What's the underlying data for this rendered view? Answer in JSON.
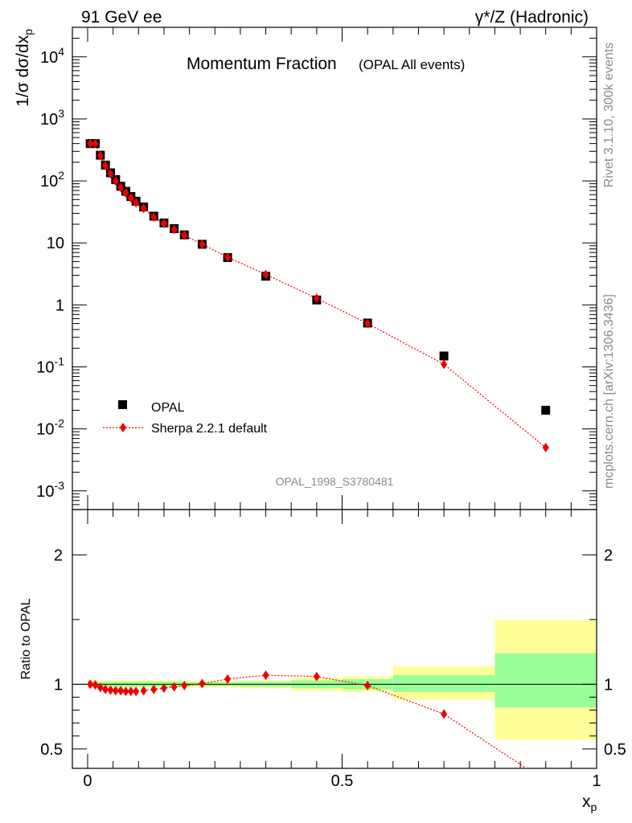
{
  "header": {
    "left": "91 GeV ee",
    "right": "γ*/Z (Hadronic)"
  },
  "side_labels": {
    "top": "Rivet 3.1.10,  300k events",
    "bottom": "mcplots.cern.ch [arXiv:1306.3436]"
  },
  "colors": {
    "data": "#000000",
    "mc": "#ee0000",
    "band_inner": "#99ff99",
    "band_outer": "#ffff99"
  },
  "chart_data": [
    {
      "type": "scatter",
      "title": "Momentum Fraction",
      "subtitle": "(OPAL All events)",
      "ylabel": "1/σ dσ/dx_p",
      "xlim": [
        -0.03,
        1.0
      ],
      "ylim": [
        0.0005,
        30000
      ],
      "yscale": "log",
      "yticks": [
        "10^-3",
        "10^-2",
        "10^-1",
        "1",
        "10",
        "10^2",
        "10^3",
        "10^4"
      ],
      "watermark": "OPAL_1998_S3780481",
      "legend": [
        "OPAL",
        "Sherpa 2.2.1 default"
      ],
      "legend_position": "bottom-left",
      "series": [
        {
          "name": "OPAL",
          "x": [
            0.005,
            0.015,
            0.025,
            0.035,
            0.045,
            0.055,
            0.065,
            0.075,
            0.085,
            0.095,
            0.11,
            0.13,
            0.15,
            0.17,
            0.19,
            0.225,
            0.275,
            0.35,
            0.45,
            0.55,
            0.7,
            0.9
          ],
          "y": [
            400,
            400,
            260,
            180,
            135,
            105,
            82,
            68,
            56,
            47,
            38,
            27,
            21,
            17,
            13.5,
            9.5,
            5.8,
            2.9,
            1.2,
            0.51,
            0.15,
            0.02
          ]
        },
        {
          "name": "Sherpa 2.2.1 default",
          "x": [
            0.005,
            0.015,
            0.025,
            0.035,
            0.045,
            0.055,
            0.065,
            0.075,
            0.085,
            0.095,
            0.11,
            0.13,
            0.15,
            0.17,
            0.19,
            0.225,
            0.275,
            0.35,
            0.45,
            0.55,
            0.7,
            0.9
          ],
          "y": [
            400,
            400,
            255,
            175,
            130,
            100,
            78,
            64,
            53,
            44.5,
            36,
            26,
            20.5,
            16.5,
            13.2,
            9.5,
            5.9,
            3.1,
            1.28,
            0.5,
            0.11,
            0.005
          ]
        }
      ]
    },
    {
      "type": "scatter",
      "ylabel": "Ratio to OPAL",
      "xlabel": "x_p",
      "xlim": [
        -0.03,
        1.0
      ],
      "ylim": [
        0.35,
        2.35
      ],
      "xticks": [
        "0",
        "0.5",
        "1"
      ],
      "yticks": [
        "0.5",
        "1",
        "2"
      ],
      "bands": [
        {
          "x0": 0.0,
          "x1": 0.1,
          "inner": [
            0.98,
            1.02
          ],
          "outer": [
            0.97,
            1.03
          ]
        },
        {
          "x0": 0.1,
          "x1": 0.2,
          "inner": [
            0.98,
            1.02
          ],
          "outer": [
            0.97,
            1.03
          ]
        },
        {
          "x0": 0.2,
          "x1": 0.3,
          "inner": [
            0.985,
            1.015
          ],
          "outer": [
            0.975,
            1.025
          ]
        },
        {
          "x0": 0.3,
          "x1": 0.4,
          "inner": [
            0.98,
            1.02
          ],
          "outer": [
            0.97,
            1.03
          ]
        },
        {
          "x0": 0.4,
          "x1": 0.5,
          "inner": [
            0.97,
            1.03
          ],
          "outer": [
            0.95,
            1.05
          ]
        },
        {
          "x0": 0.5,
          "x1": 0.6,
          "inner": [
            0.96,
            1.04
          ],
          "outer": [
            0.94,
            1.06
          ]
        },
        {
          "x0": 0.6,
          "x1": 0.8,
          "inner": [
            0.94,
            1.07
          ],
          "outer": [
            0.88,
            1.14
          ]
        },
        {
          "x0": 0.8,
          "x1": 1.0,
          "inner": [
            0.82,
            1.24
          ],
          "outer": [
            0.57,
            1.5
          ]
        }
      ],
      "series": [
        {
          "name": "Sherpa 2.2.1 default",
          "x": [
            0.005,
            0.015,
            0.025,
            0.035,
            0.045,
            0.055,
            0.065,
            0.075,
            0.085,
            0.095,
            0.11,
            0.13,
            0.15,
            0.17,
            0.19,
            0.225,
            0.275,
            0.35,
            0.45,
            0.55,
            0.7,
            0.9
          ],
          "y": [
            1.0,
            0.995,
            0.975,
            0.96,
            0.955,
            0.95,
            0.95,
            0.945,
            0.945,
            0.945,
            0.95,
            0.96,
            0.97,
            0.98,
            0.99,
            1.005,
            1.04,
            1.07,
            1.06,
            0.99,
            0.77,
            0.25
          ]
        }
      ]
    }
  ]
}
